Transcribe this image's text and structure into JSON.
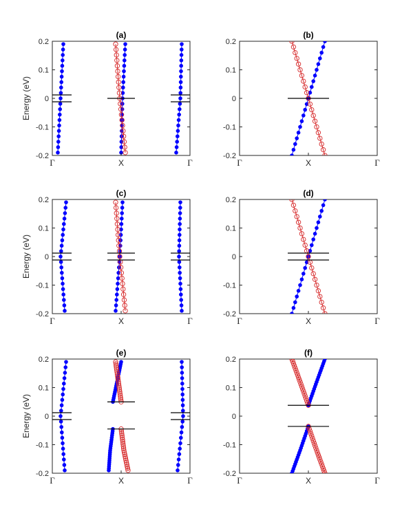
{
  "figure": {
    "tick_labels_x": [
      "Γ",
      "X",
      "Γ"
    ],
    "ylabel": "Energy (eV)",
    "colors": {
      "blue": "#0000ff",
      "red": "#d62728",
      "black": "#000000",
      "gray": "#404040"
    }
  },
  "chart_data": [
    {
      "id": "a",
      "title": "(a)",
      "type": "line",
      "ylabel": "Energy (eV)",
      "ylim": [
        -0.2,
        0.2
      ],
      "yticks": [
        "0.2",
        "0.1",
        "0",
        "-0.1",
        "-0.2"
      ],
      "xticks": [
        "Γ",
        "X",
        "Γ"
      ],
      "xlim": [
        0,
        1
      ],
      "series": [
        {
          "color": "blue",
          "marker": "dot",
          "points": [
            [
              0.04,
              -0.19
            ],
            [
              0.06,
              0.0
            ],
            [
              0.08,
              0.19
            ]
          ]
        },
        {
          "color": "blue",
          "marker": "dot",
          "points": [
            [
              0.5,
              -0.19
            ],
            [
              0.51,
              0.0
            ],
            [
              0.53,
              0.19
            ]
          ]
        },
        {
          "color": "red",
          "marker": "circle",
          "points": [
            [
              0.46,
              0.19
            ],
            [
              0.49,
              0.0
            ],
            [
              0.53,
              -0.19
            ]
          ]
        },
        {
          "color": "blue",
          "marker": "dot",
          "points": [
            [
              0.94,
              0.19
            ],
            [
              0.93,
              0.0
            ],
            [
              0.9,
              -0.19
            ]
          ]
        },
        {
          "color": "black",
          "marker": "none",
          "points": [
            [
              0.0,
              0.012
            ],
            [
              0.14,
              0.012
            ]
          ]
        },
        {
          "color": "black",
          "marker": "none",
          "points": [
            [
              0.0,
              -0.012
            ],
            [
              0.14,
              -0.012
            ]
          ]
        },
        {
          "color": "black",
          "marker": "none",
          "points": [
            [
              0.4,
              0.0
            ],
            [
              0.6,
              0.0
            ]
          ]
        },
        {
          "color": "black",
          "marker": "none",
          "points": [
            [
              0.86,
              0.012
            ],
            [
              1.0,
              0.012
            ]
          ]
        },
        {
          "color": "black",
          "marker": "none",
          "points": [
            [
              0.86,
              -0.012
            ],
            [
              1.0,
              -0.012
            ]
          ]
        }
      ]
    },
    {
      "id": "b",
      "title": "(b)",
      "type": "line",
      "ylabel": "",
      "ylim": [
        -0.2,
        0.2
      ],
      "yticks": [
        "0.2",
        "0.1",
        "0",
        "-0.1",
        "-0.2"
      ],
      "xticks": [
        "Γ",
        "X",
        "Γ"
      ],
      "xlim": [
        0,
        1
      ],
      "series": [
        {
          "color": "blue",
          "marker": "dot",
          "points": [
            [
              0.38,
              -0.2
            ],
            [
              0.5,
              0.0
            ],
            [
              0.62,
              0.2
            ]
          ]
        },
        {
          "color": "red",
          "marker": "circle",
          "points": [
            [
              0.38,
              0.2
            ],
            [
              0.5,
              0.0
            ],
            [
              0.62,
              -0.2
            ]
          ]
        },
        {
          "color": "black",
          "marker": "none",
          "points": [
            [
              0.35,
              0.0
            ],
            [
              0.65,
              0.0
            ]
          ]
        }
      ]
    },
    {
      "id": "c",
      "title": "(c)",
      "type": "line",
      "ylabel": "Energy (eV)",
      "ylim": [
        -0.2,
        0.2
      ],
      "yticks": [
        "0.2",
        "0.1",
        "0",
        "-0.1",
        "-0.2"
      ],
      "xticks": [
        "Γ",
        "X",
        "Γ"
      ],
      "xlim": [
        0,
        1
      ],
      "series": [
        {
          "color": "blue",
          "marker": "dot",
          "points": [
            [
              0.1,
              0.19
            ],
            [
              0.06,
              0.0
            ],
            [
              0.09,
              -0.19
            ]
          ]
        },
        {
          "color": "blue",
          "marker": "dot",
          "points": [
            [
              0.46,
              -0.19
            ],
            [
              0.49,
              0.0
            ],
            [
              0.51,
              0.19
            ]
          ]
        },
        {
          "color": "red",
          "marker": "circle",
          "points": [
            [
              0.46,
              0.19
            ],
            [
              0.49,
              0.0
            ],
            [
              0.53,
              -0.19
            ]
          ]
        },
        {
          "color": "blue",
          "marker": "dot",
          "points": [
            [
              0.93,
              0.19
            ],
            [
              0.92,
              0.0
            ],
            [
              0.94,
              -0.19
            ]
          ]
        },
        {
          "color": "black",
          "marker": "none",
          "points": [
            [
              0.0,
              0.012
            ],
            [
              0.14,
              0.012
            ]
          ]
        },
        {
          "color": "black",
          "marker": "none",
          "points": [
            [
              0.0,
              -0.012
            ],
            [
              0.14,
              -0.012
            ]
          ]
        },
        {
          "color": "black",
          "marker": "none",
          "points": [
            [
              0.4,
              0.012
            ],
            [
              0.6,
              0.012
            ]
          ]
        },
        {
          "color": "black",
          "marker": "none",
          "points": [
            [
              0.4,
              -0.012
            ],
            [
              0.6,
              -0.012
            ]
          ]
        },
        {
          "color": "black",
          "marker": "none",
          "points": [
            [
              0.86,
              0.012
            ],
            [
              1.0,
              0.012
            ]
          ]
        },
        {
          "color": "black",
          "marker": "none",
          "points": [
            [
              0.86,
              -0.012
            ],
            [
              1.0,
              -0.012
            ]
          ]
        }
      ]
    },
    {
      "id": "d",
      "title": "(d)",
      "type": "line",
      "ylabel": "",
      "ylim": [
        -0.2,
        0.2
      ],
      "yticks": [
        "0.2",
        "0.1",
        "0",
        "-0.1",
        "-0.2"
      ],
      "xticks": [
        "Γ",
        "X",
        "Γ"
      ],
      "xlim": [
        0,
        1
      ],
      "series": [
        {
          "color": "blue",
          "marker": "dot",
          "points": [
            [
              0.38,
              -0.2
            ],
            [
              0.5,
              0.0
            ],
            [
              0.62,
              0.2
            ]
          ]
        },
        {
          "color": "red",
          "marker": "circle",
          "points": [
            [
              0.38,
              0.2
            ],
            [
              0.5,
              0.0
            ],
            [
              0.62,
              -0.2
            ]
          ]
        },
        {
          "color": "black",
          "marker": "none",
          "points": [
            [
              0.35,
              0.012
            ],
            [
              0.65,
              0.012
            ]
          ]
        },
        {
          "color": "black",
          "marker": "none",
          "points": [
            [
              0.35,
              -0.012
            ],
            [
              0.65,
              -0.012
            ]
          ]
        }
      ]
    },
    {
      "id": "e",
      "title": "(e)",
      "type": "line",
      "ylabel": "Energy (eV)",
      "ylim": [
        -0.2,
        0.2
      ],
      "yticks": [
        "0.2",
        "0.1",
        "0",
        "-0.1",
        "-0.2"
      ],
      "xticks": [
        "Γ",
        "X",
        "Γ"
      ],
      "xlim": [
        0,
        1
      ],
      "series": [
        {
          "color": "blue",
          "marker": "dot",
          "points": [
            [
              0.1,
              0.19
            ],
            [
              0.06,
              0.0
            ],
            [
              0.09,
              -0.19
            ]
          ]
        },
        {
          "color": "blue",
          "marker": "dot",
          "points": [
            [
              0.44,
              0.05
            ],
            [
              0.47,
              0.12
            ],
            [
              0.5,
              0.19
            ]
          ]
        },
        {
          "color": "red",
          "marker": "circle",
          "points": [
            [
              0.5,
              0.05
            ],
            [
              0.48,
              0.12
            ],
            [
              0.46,
              0.19
            ]
          ]
        },
        {
          "color": "blue",
          "marker": "dot",
          "points": [
            [
              0.44,
              -0.045
            ],
            [
              0.42,
              -0.12
            ],
            [
              0.41,
              -0.19
            ]
          ]
        },
        {
          "color": "red",
          "marker": "circle",
          "points": [
            [
              0.5,
              -0.045
            ],
            [
              0.52,
              -0.12
            ],
            [
              0.55,
              -0.19
            ]
          ]
        },
        {
          "color": "blue",
          "marker": "dot",
          "points": [
            [
              0.94,
              0.19
            ],
            [
              0.95,
              0.0
            ],
            [
              0.91,
              -0.19
            ]
          ]
        },
        {
          "color": "black",
          "marker": "none",
          "points": [
            [
              0.0,
              0.012
            ],
            [
              0.14,
              0.012
            ]
          ]
        },
        {
          "color": "black",
          "marker": "none",
          "points": [
            [
              0.0,
              -0.012
            ],
            [
              0.14,
              -0.012
            ]
          ]
        },
        {
          "color": "black",
          "marker": "none",
          "points": [
            [
              0.4,
              0.05
            ],
            [
              0.6,
              0.05
            ]
          ]
        },
        {
          "color": "black",
          "marker": "none",
          "points": [
            [
              0.4,
              -0.045
            ],
            [
              0.6,
              -0.045
            ]
          ]
        },
        {
          "color": "black",
          "marker": "none",
          "points": [
            [
              0.86,
              0.012
            ],
            [
              1.0,
              0.012
            ]
          ]
        },
        {
          "color": "black",
          "marker": "none",
          "points": [
            [
              0.86,
              -0.012
            ],
            [
              1.0,
              -0.012
            ]
          ]
        }
      ]
    },
    {
      "id": "f",
      "title": "(f)",
      "type": "line",
      "ylabel": "",
      "ylim": [
        -0.2,
        0.2
      ],
      "yticks": [
        "0.2",
        "0.1",
        "0",
        "-0.1",
        "-0.2"
      ],
      "xticks": [
        "Γ",
        "X",
        "Γ"
      ],
      "xlim": [
        0,
        1
      ],
      "series": [
        {
          "color": "blue",
          "marker": "dot",
          "points": [
            [
              0.5,
              0.038
            ],
            [
              0.56,
              0.12
            ],
            [
              0.62,
              0.2
            ]
          ]
        },
        {
          "color": "red",
          "marker": "circle",
          "points": [
            [
              0.5,
              0.038
            ],
            [
              0.44,
              0.12
            ],
            [
              0.38,
              0.2
            ]
          ]
        },
        {
          "color": "blue",
          "marker": "dot",
          "points": [
            [
              0.5,
              -0.036
            ],
            [
              0.44,
              -0.12
            ],
            [
              0.38,
              -0.2
            ]
          ]
        },
        {
          "color": "red",
          "marker": "circle",
          "points": [
            [
              0.5,
              -0.036
            ],
            [
              0.56,
              -0.12
            ],
            [
              0.62,
              -0.2
            ]
          ]
        },
        {
          "color": "black",
          "marker": "none",
          "points": [
            [
              0.35,
              0.038
            ],
            [
              0.65,
              0.038
            ]
          ]
        },
        {
          "color": "black",
          "marker": "none",
          "points": [
            [
              0.35,
              -0.036
            ],
            [
              0.65,
              -0.036
            ]
          ]
        }
      ]
    }
  ]
}
